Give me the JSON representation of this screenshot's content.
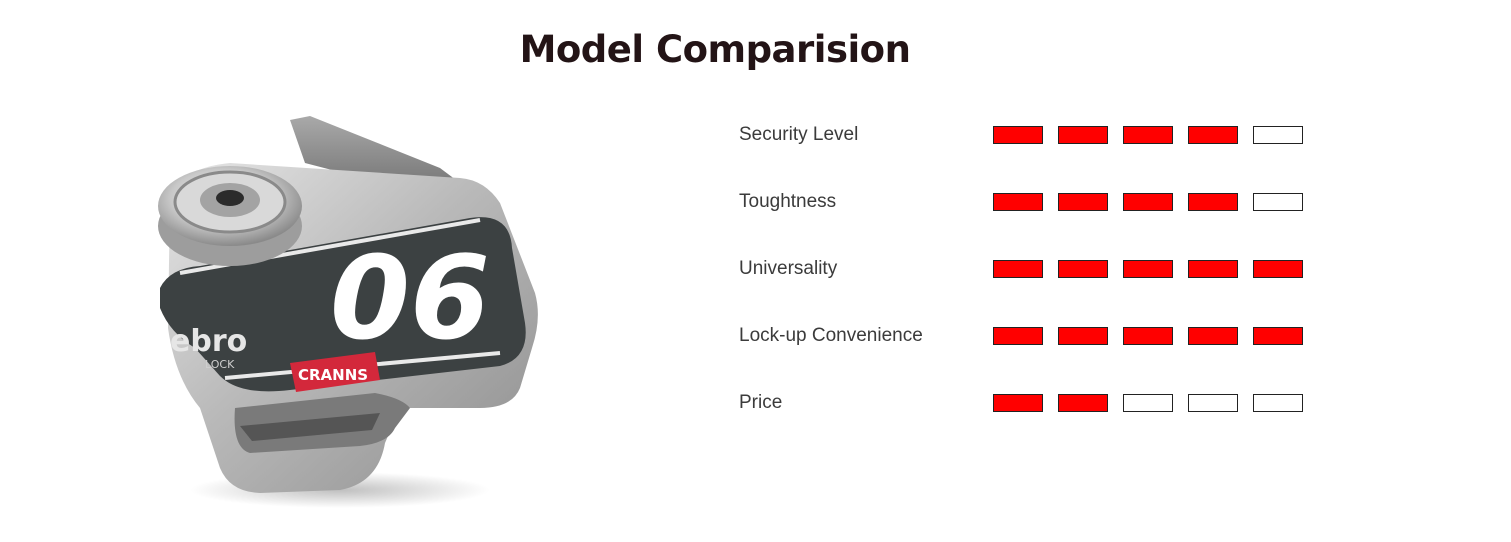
{
  "title": "Model Comparision",
  "colors": {
    "filled": "#ff0000",
    "empty": "#ffffff",
    "title": "#231416"
  },
  "product": {
    "icon": "disc-lock-image",
    "brand": "CRANNS",
    "model_number": "06",
    "side_text": "ebro",
    "side_subtext": "LOCK"
  },
  "ratings": [
    {
      "label": "Security Level",
      "score": 4,
      "max": 5
    },
    {
      "label": "Toughtness",
      "score": 4,
      "max": 5
    },
    {
      "label": "Universality",
      "score": 5,
      "max": 5
    },
    {
      "label": "Lock-up Convenience",
      "score": 5,
      "max": 5
    },
    {
      "label": "Price",
      "score": 2,
      "max": 5
    }
  ]
}
